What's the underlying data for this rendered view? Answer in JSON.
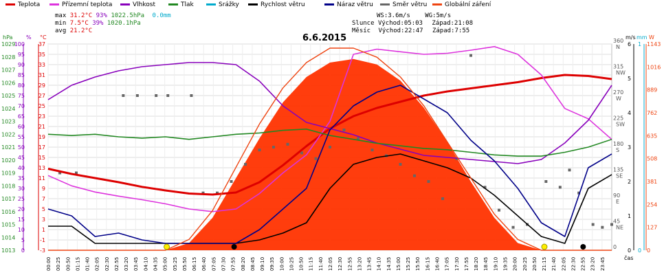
{
  "legend": [
    {
      "label": "Teplota",
      "color": "#dd0000"
    },
    {
      "label": "Přízemní teplota",
      "color": "#dd33dd"
    },
    {
      "label": "Vlhkost",
      "color": "#8800bb"
    },
    {
      "label": "Tlak",
      "color": "#228822"
    },
    {
      "label": "Srážky",
      "color": "#00aacc"
    },
    {
      "label": "Rychlost větru",
      "color": "#000000"
    },
    {
      "label": "Náraz větru",
      "color": "#000088"
    },
    {
      "label": "Směr větru",
      "color": "#666666"
    },
    {
      "label": "Globální záření",
      "color": "#ee4411"
    }
  ],
  "stats": {
    "max_label": "max",
    "max_temp": "31.2°C",
    "max_hum": "93%",
    "max_press": "1022.5hPa",
    "rain": "0.0mm",
    "min_label": "min",
    "min_temp": "7.5°C",
    "min_hum": "39%",
    "min_press": "1020.1hPa",
    "avg_label": "avg",
    "avg_temp": "21.2°C"
  },
  "wind_info": {
    "ws": "WS:3.6m/s",
    "wg": "WG:5m/s"
  },
  "sun": {
    "label": "Slunce",
    "rise": "Východ:05:03",
    "set": "Západ:21:08"
  },
  "moon": {
    "label": "Měsíc",
    "rise": "Východ:22:47",
    "set": "Západ:7:55"
  },
  "chart_data": {
    "type": "line",
    "title": "6.6.2015",
    "xlabel": "čas",
    "x_ticks": [
      "00:00",
      "00:25",
      "00:50",
      "01:15",
      "01:40",
      "02:05",
      "02:30",
      "02:55",
      "03:20",
      "03:45",
      "04:10",
      "04:35",
      "05:00",
      "05:25",
      "05:50",
      "06:15",
      "06:40",
      "07:05",
      "07:30",
      "07:55",
      "08:20",
      "08:45",
      "09:10",
      "09:35",
      "10:00",
      "10:25",
      "10:50",
      "11:15",
      "11:40",
      "12:05",
      "12:30",
      "12:55",
      "13:20",
      "13:45",
      "14:10",
      "14:35",
      "15:00",
      "15:25",
      "15:50",
      "16:15",
      "16:40",
      "17:05",
      "17:30",
      "17:55",
      "18:20",
      "18:45",
      "19:10",
      "19:35",
      "20:00",
      "20:25",
      "20:50",
      "21:15",
      "21:40",
      "22:05",
      "22:30",
      "22:55",
      "23:20",
      "23:45"
    ],
    "axes": {
      "pressure": {
        "unit": "hPa",
        "ticks": [
          "1013",
          "1014",
          "1015",
          "1016",
          "1017",
          "1018",
          "1019",
          "1020",
          "1021",
          "1022",
          "1023",
          "1024",
          "1025",
          "1026",
          "1027",
          "1028",
          "1029"
        ],
        "ylim": [
          1013,
          1029
        ]
      },
      "humidity": {
        "unit": "%",
        "ticks": [
          "0",
          "5",
          "10",
          "15",
          "20",
          "25",
          "30",
          "35",
          "40",
          "45",
          "50",
          "55",
          "60",
          "65",
          "70",
          "75",
          "80",
          "85",
          "90",
          "95",
          "100"
        ],
        "ylim": [
          0,
          100
        ]
      },
      "temperature": {
        "unit": "°C",
        "ticks": [
          "-3",
          "-1",
          "1",
          "3",
          "5",
          "7",
          "9",
          "11",
          "13",
          "15",
          "17",
          "19",
          "21",
          "23",
          "25",
          "27",
          "29",
          "31",
          "33",
          "35",
          "37"
        ],
        "ylim": [
          -3,
          37
        ]
      },
      "wind_dir": {
        "ticks": [
          "0",
          "45 NE",
          "90 E",
          "135 SE",
          "180 S",
          "225 SW",
          "270 W",
          "315 NW",
          "360 N"
        ]
      },
      "wind_speed": {
        "unit": "m/s",
        "ticks": [
          "0",
          "1",
          "2",
          "3",
          "4",
          "5",
          "6"
        ],
        "ylim": [
          0,
          6
        ]
      },
      "rain": {
        "unit": "mm",
        "ticks": [
          "0",
          "1"
        ]
      },
      "radiation": {
        "unit": "W",
        "ticks": [
          "0",
          "127",
          "254",
          "381",
          "508",
          "635",
          "762",
          "889",
          "1016",
          "1143"
        ],
        "ylim": [
          0,
          1143
        ]
      }
    },
    "series": [
      {
        "name": "Teplota",
        "color": "#dd0000",
        "axis": "temperature",
        "x": [
          0,
          1,
          2,
          3,
          4,
          5,
          6,
          7,
          8,
          9,
          10,
          11,
          12,
          13,
          14,
          15,
          16,
          17,
          18,
          19,
          20,
          21,
          22,
          23,
          24
        ],
        "values": [
          12.8,
          11.8,
          11.0,
          10.2,
          9.3,
          8.6,
          8.0,
          7.8,
          8.2,
          10.2,
          13.5,
          17.2,
          20.6,
          23.0,
          24.6,
          25.8,
          27.0,
          27.8,
          28.4,
          29.0,
          29.6,
          30.4,
          31.0,
          30.8,
          30.2
        ]
      },
      {
        "name": "Přízemní teplota",
        "color": "#dd33dd",
        "axis": "temperature",
        "x": [
          0,
          1,
          2,
          3,
          4,
          5,
          6,
          7,
          8,
          9,
          10,
          11,
          12,
          13,
          14,
          15,
          16,
          17,
          18,
          19,
          20,
          21,
          22,
          23,
          24
        ],
        "values": [
          11.5,
          9.5,
          8.3,
          7.5,
          6.8,
          6.0,
          5.0,
          4.5,
          5.0,
          8.0,
          12.0,
          15.5,
          22.0,
          35.0,
          36.0,
          35.5,
          35.0,
          35.2,
          35.8,
          36.5,
          35.0,
          31.0,
          24.5,
          22.5,
          18.5
        ]
      },
      {
        "name": "Vlhkost",
        "color": "#8800bb",
        "axis": "humidity",
        "x": [
          0,
          1,
          2,
          3,
          4,
          5,
          6,
          7,
          8,
          9,
          10,
          11,
          12,
          13,
          14,
          15,
          16,
          17,
          18,
          19,
          20,
          21,
          22,
          23,
          24
        ],
        "values": [
          73,
          80,
          84,
          87,
          89,
          90,
          91,
          91,
          90,
          82,
          70,
          62,
          59,
          56,
          52,
          49,
          46,
          45,
          44,
          43,
          42,
          44,
          52,
          63,
          80
        ]
      },
      {
        "name": "Tlak",
        "color": "#228822",
        "axis": "pressure",
        "x": [
          0,
          1,
          2,
          3,
          4,
          5,
          6,
          7,
          8,
          9,
          10,
          11,
          12,
          13,
          14,
          15,
          16,
          17,
          18,
          19,
          20,
          21,
          22,
          23,
          24
        ],
        "values": [
          1022.0,
          1021.9,
          1022.0,
          1021.8,
          1021.7,
          1021.8,
          1021.6,
          1021.8,
          1022.0,
          1022.1,
          1022.3,
          1022.4,
          1021.9,
          1021.6,
          1021.3,
          1021.1,
          1020.9,
          1020.8,
          1020.6,
          1020.4,
          1020.3,
          1020.3,
          1020.6,
          1021.0,
          1021.6
        ]
      },
      {
        "name": "Rychlost větru",
        "color": "#000000",
        "axis": "wind_speed",
        "x": [
          0,
          1,
          2,
          3,
          4,
          5,
          6,
          7,
          8,
          9,
          10,
          11,
          12,
          13,
          14,
          15,
          16,
          17,
          18,
          19,
          20,
          21,
          22,
          23,
          24
        ],
        "values": [
          0.7,
          0.7,
          0.2,
          0.2,
          0.2,
          0.2,
          0.2,
          0.2,
          0.2,
          0.3,
          0.5,
          0.8,
          1.8,
          2.5,
          2.7,
          2.8,
          2.6,
          2.4,
          2.1,
          1.6,
          1.0,
          0.4,
          0.2,
          1.8,
          2.2
        ]
      },
      {
        "name": "Náraz větru",
        "color": "#000088",
        "axis": "wind_speed",
        "x": [
          0,
          1,
          2,
          3,
          4,
          5,
          6,
          7,
          8,
          9,
          10,
          11,
          12,
          13,
          14,
          15,
          16,
          17,
          18,
          19,
          20,
          21,
          22,
          23,
          24
        ],
        "values": [
          1.2,
          1.0,
          0.4,
          0.5,
          0.3,
          0.2,
          0.2,
          0.2,
          0.2,
          0.6,
          1.2,
          1.8,
          3.5,
          4.2,
          4.6,
          4.8,
          4.4,
          4.0,
          3.2,
          2.6,
          1.8,
          0.8,
          0.4,
          2.4,
          2.8
        ]
      },
      {
        "name": "Globální záření",
        "color": "#ee4411",
        "axis": "radiation",
        "x": [
          0,
          5,
          6,
          7,
          8,
          9,
          10,
          11,
          12,
          13,
          14,
          15,
          16,
          17,
          18,
          19,
          20,
          21,
          24
        ],
        "values": [
          0,
          0,
          40,
          180,
          400,
          620,
          820,
          960,
          1040,
          1060,
          1030,
          940,
          790,
          600,
          380,
          180,
          40,
          0,
          0
        ]
      },
      {
        "name": "Globální záření (teoretické)",
        "color": "#ee4411",
        "axis": "radiation",
        "x": [
          0,
          5,
          6,
          7,
          8,
          9,
          10,
          11,
          12,
          13,
          14,
          15,
          16,
          17,
          18,
          19,
          20,
          21,
          24
        ],
        "values": [
          0,
          0,
          60,
          220,
          460,
          700,
          900,
          1040,
          1120,
          1120,
          1070,
          960,
          800,
          600,
          400,
          200,
          60,
          0,
          0
        ]
      }
    ],
    "wind_direction_points": {
      "name": "Směr větru",
      "color": "#666666",
      "axis": "wind_dir",
      "x": [
        0.5,
        1.2,
        3.2,
        3.8,
        4.6,
        5.1,
        6.1,
        6.6,
        7.2,
        7.8,
        8.4,
        9.0,
        9.6,
        10.2,
        10.8,
        11.4,
        12.0,
        12.6,
        13.2,
        13.8,
        14.4,
        15.0,
        15.6,
        16.2,
        16.8,
        17.4,
        18.0,
        18.6,
        19.2,
        19.8,
        20.4,
        21.2,
        21.8,
        22.2,
        22.6,
        23.2,
        23.6,
        24.0
      ],
      "values": [
        135,
        135,
        270,
        270,
        270,
        270,
        270,
        100,
        100,
        120,
        150,
        175,
        180,
        185,
        170,
        160,
        180,
        210,
        195,
        175,
        165,
        150,
        130,
        120,
        90,
        160,
        340,
        110,
        70,
        40,
        45,
        120,
        110,
        140,
        100,
        45,
        40,
        45
      ]
    },
    "markers": [
      {
        "name": "východ slunce",
        "x": 5.05,
        "kind": "sun"
      },
      {
        "name": "západ měsíce",
        "x": 7.92,
        "kind": "moon"
      },
      {
        "name": "západ slunce",
        "x": 21.13,
        "kind": "sun"
      },
      {
        "name": "východ měsíce",
        "x": 22.78,
        "kind": "moon"
      }
    ]
  }
}
